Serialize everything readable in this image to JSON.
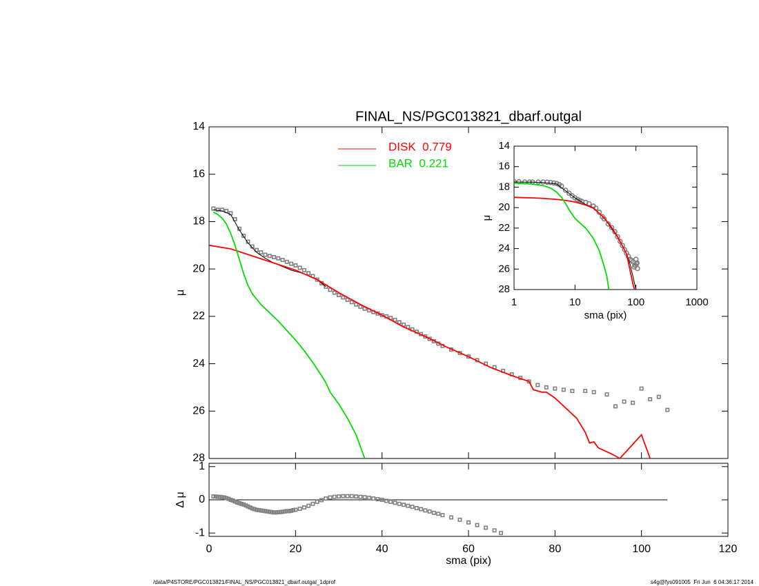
{
  "chart_data": [
    {
      "type": "line",
      "title": "FINAL_NS/PGC013821_dbarf.outgal",
      "ylabel": "μ",
      "xlim": [
        0,
        120
      ],
      "ylim": [
        14,
        28
      ],
      "yreverse": true,
      "yticks": [
        14,
        16,
        18,
        20,
        22,
        24,
        26,
        28
      ],
      "legend": "top",
      "series": [
        {
          "marker": "square",
          "color": "#808080",
          "x": [
            1,
            2,
            3,
            4,
            5,
            6,
            7,
            8,
            9,
            10,
            11,
            12,
            13,
            14,
            15,
            16,
            17,
            18,
            19,
            20,
            21,
            22,
            23,
            24,
            25,
            26,
            27,
            28,
            29,
            30,
            31,
            32,
            33,
            34,
            35,
            36,
            37,
            38,
            39,
            40,
            41,
            42,
            43,
            44,
            45,
            46,
            47,
            48,
            49,
            50,
            51,
            52,
            53,
            54,
            56,
            58,
            60,
            62,
            64,
            66,
            68,
            70,
            72,
            74,
            76,
            78,
            80,
            82,
            84,
            87,
            89,
            92,
            94,
            96,
            98,
            100,
            102,
            104,
            106
          ],
          "values": [
            17.45,
            17.5,
            17.5,
            17.55,
            17.65,
            17.9,
            18.3,
            18.6,
            18.85,
            19.05,
            19.2,
            19.3,
            19.4,
            19.45,
            19.5,
            19.55,
            19.62,
            19.7,
            19.78,
            19.85,
            19.95,
            20.05,
            20.18,
            20.3,
            20.45,
            20.6,
            20.75,
            20.88,
            21.0,
            21.1,
            21.2,
            21.3,
            21.4,
            21.5,
            21.6,
            21.68,
            21.75,
            21.82,
            21.88,
            21.95,
            22.0,
            22.07,
            22.15,
            22.25,
            22.35,
            22.45,
            22.55,
            22.65,
            22.75,
            22.85,
            22.95,
            23.05,
            23.15,
            23.25,
            23.4,
            23.55,
            23.7,
            23.85,
            24.0,
            24.15,
            24.3,
            24.45,
            24.6,
            24.75,
            24.9,
            25.0,
            25.05,
            25.1,
            25.15,
            25.15,
            25.2,
            25.3,
            25.8,
            25.6,
            25.65,
            25.05,
            25.5,
            25.4,
            25.95
          ]
        },
        {
          "color": "#000000",
          "x": [
            1,
            3,
            5,
            7,
            9,
            11,
            13,
            15,
            17,
            19,
            21,
            23,
            25,
            27
          ],
          "values": [
            17.5,
            17.55,
            17.7,
            18.35,
            18.9,
            19.3,
            19.55,
            19.75,
            19.9,
            20.05,
            20.15,
            20.28,
            20.45,
            20.75
          ]
        },
        {
          "name": "DISK  0.779",
          "color": "#ff0000",
          "x": [
            0,
            5,
            10,
            15,
            20,
            25,
            30,
            35,
            40,
            45,
            50,
            55,
            60,
            65,
            70,
            74,
            75,
            77,
            78,
            80,
            85,
            87,
            88,
            89,
            90,
            93,
            95,
            100,
            102
          ],
          "values": [
            19.0,
            19.15,
            19.45,
            19.75,
            20.05,
            20.45,
            21.0,
            21.5,
            21.95,
            22.45,
            22.85,
            23.3,
            23.7,
            24.15,
            24.5,
            24.75,
            25.1,
            25.2,
            25.2,
            25.45,
            26.3,
            26.9,
            27.35,
            27.3,
            27.55,
            27.8,
            28.0,
            27.0,
            28.0
          ]
        },
        {
          "name": "BAR  0.221",
          "color": "#00dd00",
          "x": [
            1,
            2,
            3,
            4,
            5,
            6,
            7,
            8,
            9,
            10,
            12,
            14,
            16,
            18,
            20,
            22,
            24,
            26,
            27,
            28,
            30,
            32,
            34,
            35,
            36
          ],
          "values": [
            17.6,
            17.7,
            17.85,
            18.1,
            18.5,
            19.0,
            19.6,
            20.2,
            20.7,
            21.05,
            21.5,
            21.85,
            22.2,
            22.6,
            23.0,
            23.45,
            23.95,
            24.5,
            24.8,
            25.2,
            25.7,
            26.3,
            27.0,
            27.5,
            28.0
          ]
        }
      ]
    },
    {
      "type": "line",
      "ylabel": "Δ μ",
      "xlabel": "sma (pix)",
      "xlim": [
        0,
        120
      ],
      "xticks": [
        0,
        20,
        40,
        60,
        80,
        100,
        120
      ],
      "ylim": [
        -1.1,
        1.1
      ],
      "yticks": [
        -1,
        0,
        1
      ],
      "series": [
        {
          "color": "#000000",
          "x": [
            0,
            106
          ],
          "values": [
            0,
            0
          ]
        },
        {
          "marker": "square",
          "color": "#808080",
          "x": [
            1,
            1.5,
            2,
            2.5,
            3,
            3.5,
            4,
            4.5,
            5,
            5.5,
            6,
            6.5,
            7,
            7.5,
            8,
            8.5,
            9,
            9.5,
            10,
            10.5,
            11,
            11.5,
            12,
            12.5,
            13,
            13.5,
            14,
            14.5,
            15,
            15.5,
            16,
            16.5,
            17,
            17.5,
            18,
            18.5,
            19,
            19.5,
            20,
            21,
            22,
            23,
            24,
            25,
            26,
            27,
            28,
            29,
            30,
            31,
            32,
            33,
            34,
            35,
            36,
            37,
            38,
            39,
            40,
            41,
            42,
            43,
            44,
            45,
            46,
            47,
            48,
            49,
            50,
            51,
            52,
            53,
            54,
            56,
            58,
            60,
            62,
            64,
            66,
            67.5
          ],
          "values": [
            0.1,
            0.1,
            0.09,
            0.09,
            0.08,
            0.07,
            0.05,
            0.03,
            0.0,
            -0.02,
            -0.05,
            -0.08,
            -0.1,
            -0.12,
            -0.14,
            -0.17,
            -0.2,
            -0.23,
            -0.26,
            -0.28,
            -0.3,
            -0.31,
            -0.32,
            -0.33,
            -0.34,
            -0.35,
            -0.36,
            -0.37,
            -0.38,
            -0.38,
            -0.37,
            -0.37,
            -0.36,
            -0.35,
            -0.34,
            -0.34,
            -0.33,
            -0.31,
            -0.3,
            -0.27,
            -0.23,
            -0.18,
            -0.12,
            -0.06,
            -0.01,
            0.04,
            0.07,
            0.09,
            0.1,
            0.11,
            0.11,
            0.11,
            0.1,
            0.09,
            0.08,
            0.06,
            0.04,
            0.02,
            0.0,
            -0.03,
            -0.06,
            -0.09,
            -0.12,
            -0.15,
            -0.18,
            -0.21,
            -0.25,
            -0.28,
            -0.32,
            -0.35,
            -0.39,
            -0.42,
            -0.46,
            -0.53,
            -0.6,
            -0.68,
            -0.76,
            -0.84,
            -0.92,
            -1.0
          ]
        }
      ]
    },
    {
      "type": "line",
      "xlabel": "sma (pix)",
      "ylabel": "μ",
      "xlog": true,
      "xlim": [
        1,
        1000
      ],
      "xticks": [
        1,
        10,
        100,
        1000
      ],
      "ylim": [
        14,
        28
      ],
      "yreverse": true,
      "yticks": [
        14,
        16,
        18,
        20,
        22,
        24,
        26,
        28
      ],
      "series": [
        {
          "marker": "circle",
          "color": "#808080",
          "x": [
            1,
            1.2,
            1.5,
            1.8,
            2,
            2.5,
            3,
            3.5,
            4,
            4.5,
            5,
            5.5,
            6,
            7,
            8,
            9,
            10,
            11,
            12,
            13,
            15,
            17,
            20,
            22,
            25,
            28,
            30,
            35,
            40,
            45,
            50,
            55,
            60,
            65,
            70,
            75,
            80,
            85,
            90,
            94,
            96,
            98,
            100,
            102,
            104,
            106
          ],
          "values": [
            17.45,
            17.47,
            17.5,
            17.5,
            17.5,
            17.5,
            17.5,
            17.52,
            17.55,
            17.6,
            17.65,
            17.75,
            17.9,
            18.3,
            18.6,
            18.85,
            19.05,
            19.2,
            19.3,
            19.4,
            19.5,
            19.62,
            19.85,
            20.05,
            20.45,
            20.88,
            21.1,
            21.6,
            21.95,
            22.35,
            22.85,
            23.3,
            23.7,
            24.1,
            24.45,
            24.75,
            25.05,
            25.15,
            25.3,
            25.8,
            25.6,
            25.65,
            25.05,
            25.5,
            25.4,
            25.95
          ]
        },
        {
          "color": "#000000",
          "x": [
            1,
            2,
            3,
            5,
            7,
            10,
            15,
            20,
            30,
            50,
            70,
            80,
            90,
            100
          ],
          "values": [
            17.5,
            17.52,
            17.55,
            17.7,
            18.35,
            19.05,
            19.7,
            20.0,
            21.0,
            22.9,
            24.5,
            25.5,
            26.8,
            28.0
          ]
        },
        {
          "color": "#ff0000",
          "x": [
            1,
            2,
            3,
            5,
            7,
            10,
            15,
            20,
            30,
            40,
            50,
            70,
            90,
            95
          ],
          "values": [
            19.0,
            19.05,
            19.1,
            19.2,
            19.3,
            19.45,
            19.75,
            20.05,
            21.0,
            21.95,
            22.85,
            24.5,
            27.55,
            28.0
          ]
        },
        {
          "color": "#00dd00",
          "x": [
            1,
            2,
            3,
            4,
            5,
            6,
            7,
            8,
            10,
            12,
            15,
            20,
            25,
            30,
            33,
            36
          ],
          "values": [
            17.6,
            17.7,
            17.85,
            18.1,
            18.5,
            19.0,
            19.6,
            20.2,
            21.05,
            21.5,
            22.0,
            23.0,
            24.2,
            25.7,
            26.6,
            28.0
          ]
        }
      ]
    }
  ],
  "footer": {
    "left": "/data/P4STORE/PGC013821/FINAL_NS/PGC013821_dbarf.outgal_1dprof",
    "right": "s4g@fys091005  Fri Jun  6 04:36:17 2014"
  }
}
